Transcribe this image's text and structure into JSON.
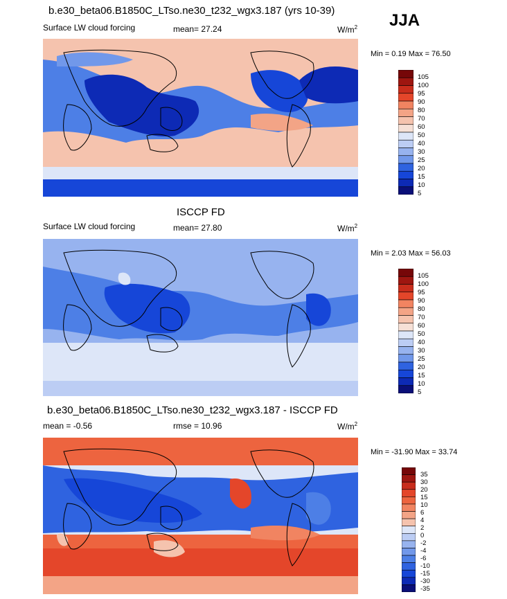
{
  "season": "JJA",
  "colors": {
    "full_levels": [
      "#0a0f78",
      "#0d2ab5",
      "#1646d8",
      "#2f63e0",
      "#4d7fe6",
      "#7198ea",
      "#97b3ef",
      "#bccdf4",
      "#dde6f8",
      "#f6e0d6",
      "#f5c3ae",
      "#f3a486",
      "#f18461",
      "#ed643f",
      "#e4462a",
      "#c82d1c",
      "#9e1610",
      "#760708"
    ],
    "diff_levels": [
      "#0a0f78",
      "#0d2ab5",
      "#1646d8",
      "#2f63e0",
      "#4d7fe6",
      "#7198ea",
      "#97b3ef",
      "#bccdf4",
      "#dde6f8",
      "#f6e0d6",
      "#f5c3ae",
      "#f3a486",
      "#f18461",
      "#ed643f",
      "#e4462a",
      "#c82d1c",
      "#9e1610",
      "#760708"
    ]
  },
  "panels": [
    {
      "title": "b.e30_beta06.B1850C_LTso.ne30_t232_wgx3.187 (yrs 10-39)",
      "left_label": "Surface LW cloud forcing",
      "stat_label": "mean=  27.24",
      "units": "W/m",
      "units_exp": "2",
      "minmax": "Min =   0.19 Max =  76.50",
      "colorbar_labels": [
        "105",
        "100",
        "95",
        "90",
        "80",
        "70",
        "60",
        "50",
        "40",
        "30",
        "25",
        "20",
        "15",
        "10",
        "5"
      ]
    },
    {
      "title": "ISCCP FD",
      "left_label": "Surface LW cloud forcing",
      "stat_label": "mean=  27.80",
      "units": "W/m",
      "units_exp": "2",
      "minmax": "Min =   2.03 Max =  56.03",
      "colorbar_labels": [
        "105",
        "100",
        "95",
        "90",
        "80",
        "70",
        "60",
        "50",
        "40",
        "30",
        "25",
        "20",
        "15",
        "10",
        "5"
      ]
    },
    {
      "title": "b.e30_beta06.B1850C_LTso.ne30_t232_wgx3.187 - ISCCP FD",
      "left_label": "mean =  -0.56",
      "stat_label": "rmse =  10.96",
      "units": "W/m",
      "units_exp": "2",
      "minmax": "Min = -31.90 Max =  33.74",
      "colorbar_labels": [
        "35",
        "30",
        "20",
        "15",
        "10",
        "6",
        "4",
        "2",
        "0",
        "-2",
        "-4",
        "-6",
        "-10",
        "-15",
        "-30",
        "-35"
      ]
    }
  ],
  "chart_data": [
    {
      "type": "heatmap",
      "title": "b.e30_beta06.B1850C_LTso.ne30_t232_wgx3.187 (yrs 10-39)",
      "variable": "Surface LW cloud forcing",
      "units": "W/m^2",
      "mean": 27.24,
      "min": 0.19,
      "max": 76.5,
      "levels": [
        5,
        10,
        15,
        20,
        25,
        30,
        40,
        50,
        60,
        70,
        80,
        90,
        95,
        100,
        105
      ]
    },
    {
      "type": "heatmap",
      "title": "ISCCP FD",
      "variable": "Surface LW cloud forcing",
      "units": "W/m^2",
      "mean": 27.8,
      "min": 2.03,
      "max": 56.03,
      "levels": [
        5,
        10,
        15,
        20,
        25,
        30,
        40,
        50,
        60,
        70,
        80,
        90,
        95,
        100,
        105
      ]
    },
    {
      "type": "heatmap",
      "title": "b.e30_beta06.B1850C_LTso.ne30_t232_wgx3.187 - ISCCP FD",
      "units": "W/m^2",
      "mean": -0.56,
      "rmse": 10.96,
      "min": -31.9,
      "max": 33.74,
      "levels": [
        -35,
        -30,
        -15,
        -10,
        -6,
        -4,
        -2,
        0,
        2,
        4,
        6,
        10,
        15,
        20,
        30,
        35
      ]
    }
  ]
}
